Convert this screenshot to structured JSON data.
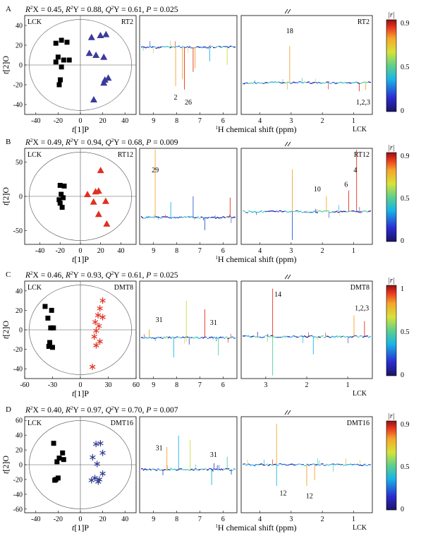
{
  "panels": [
    {
      "letter": "A",
      "stats": {
        "r2x": "0.45",
        "r2y": "0.88",
        "q2y": "0.61",
        "p": "0.025"
      },
      "score_plot": {
        "label_left": "LCK",
        "label_right": "RT2",
        "xticks": [
          -40,
          -20,
          0,
          20,
          40
        ],
        "yticks": [
          40,
          20,
          0,
          -20,
          -40
        ],
        "xlim": [
          -50,
          50
        ],
        "ylim": [
          -50,
          50
        ],
        "xlabel": "t[1]P",
        "ylabel": "t[2]O",
        "group_a": {
          "marker": "square",
          "color": "#000000",
          "points": [
            [
              -22,
              22
            ],
            [
              -17,
              25
            ],
            [
              -12,
              23
            ],
            [
              -20,
              8
            ],
            [
              -15,
              5
            ],
            [
              -10,
              5
            ],
            [
              -22,
              3
            ],
            [
              -17,
              -2
            ],
            [
              -18,
              -15
            ],
            [
              -19,
              -20
            ]
          ]
        },
        "group_b": {
          "marker": "triangle",
          "color": "#3a3a9e",
          "points": [
            [
              18,
              30
            ],
            [
              23,
              31
            ],
            [
              10,
              28
            ],
            [
              8,
              12
            ],
            [
              14,
              10
            ],
            [
              21,
              8
            ],
            [
              22,
              -15
            ],
            [
              25,
              -13
            ],
            [
              21,
              -18
            ],
            [
              12,
              -35
            ]
          ]
        }
      },
      "spectrum": {
        "left_ticks": [
          "9",
          "8",
          "7",
          "6"
        ],
        "right_ticks": [
          "4",
          "3",
          "2",
          "1"
        ],
        "xlabel_visible": true,
        "right_title": "RT2",
        "labels": [
          {
            "text": "2",
            "region": "L"
          },
          {
            "text": "26",
            "region": "L"
          },
          {
            "text": "18",
            "region": "R"
          },
          {
            "text": "1,2,3",
            "region": "R"
          }
        ],
        "lck_label": "LCK"
      },
      "colorbar": {
        "title": "|r|",
        "ticks": [
          "0.9",
          "0.5",
          "0"
        ]
      }
    },
    {
      "letter": "B",
      "stats": {
        "r2x": "0.49",
        "r2y": "0.94",
        "q2y": "0.68",
        "p": "0.009"
      },
      "score_plot": {
        "label_left": "LCK",
        "label_right": "RT12",
        "xticks": [
          -40,
          -20,
          0,
          20,
          40
        ],
        "yticks": [
          50,
          0,
          -50
        ],
        "xlim": [
          -55,
          55
        ],
        "ylim": [
          -70,
          70
        ],
        "xlabel": "t[1]P",
        "ylabel": "t[2]O",
        "group_a": {
          "marker": "square",
          "color": "#000000",
          "points": [
            [
              -20,
              16
            ],
            [
              -16,
              15
            ],
            [
              -19,
              3
            ],
            [
              -17,
              -2
            ],
            [
              -21,
              -5
            ],
            [
              -20,
              -10
            ],
            [
              -18,
              -16
            ]
          ]
        },
        "group_b": {
          "marker": "triangle",
          "color": "#e03020",
          "points": [
            [
              20,
              38
            ],
            [
              15,
              7
            ],
            [
              18,
              8
            ],
            [
              7,
              3
            ],
            [
              13,
              -8
            ],
            [
              25,
              -7
            ],
            [
              26,
              -40
            ],
            [
              18,
              -26
            ]
          ]
        }
      },
      "spectrum": {
        "left_ticks": [
          "9",
          "8",
          "7",
          "6"
        ],
        "right_ticks": [
          "4",
          "3",
          "2",
          "1"
        ],
        "xlabel_visible": true,
        "right_title": "RT12",
        "labels": [
          {
            "text": "29",
            "region": "L"
          },
          {
            "text": "10",
            "region": "R"
          },
          {
            "text": "6",
            "region": "R"
          },
          {
            "text": "4",
            "region": "R"
          }
        ],
        "lck_label": ""
      },
      "colorbar": {
        "title": "|r|",
        "ticks": [
          "0.9",
          "0.5",
          "0"
        ]
      }
    },
    {
      "letter": "C",
      "stats": {
        "r2x": "0.46",
        "r2y": "0.93",
        "q2y": "0.61",
        "p": "0.025"
      },
      "score_plot": {
        "label_left": "LCK",
        "label_right": "DMT8",
        "xticks": [
          -60,
          -30,
          0,
          30,
          60
        ],
        "yticks": [
          40,
          20,
          0,
          -20,
          -40
        ],
        "xlim": [
          -60,
          60
        ],
        "ylim": [
          -50,
          50
        ],
        "xlabel": "t[1]P",
        "ylabel": "t[2]O",
        "group_a": {
          "marker": "square",
          "color": "#000000",
          "points": [
            [
              -38,
              24
            ],
            [
              -31,
              20
            ],
            [
              -35,
              12
            ],
            [
              -29,
              2
            ],
            [
              -32,
              2
            ],
            [
              -33,
              -13
            ],
            [
              -30,
              -18
            ],
            [
              -34,
              -17
            ]
          ]
        },
        "group_b": {
          "marker": "asterisk",
          "color": "#e03020",
          "points": [
            [
              24,
              30
            ],
            [
              21,
              22
            ],
            [
              19,
              15
            ],
            [
              24,
              13
            ],
            [
              16,
              8
            ],
            [
              20,
              4
            ],
            [
              17,
              -1
            ],
            [
              15,
              -7
            ],
            [
              21,
              -12
            ],
            [
              17,
              -16
            ],
            [
              13,
              -38
            ]
          ]
        }
      },
      "spectrum": {
        "left_ticks": [
          "9",
          "8",
          "7",
          "6"
        ],
        "right_ticks": [
          "3",
          "2",
          "1"
        ],
        "xlabel_visible": false,
        "right_title": "DMT8",
        "labels": [
          {
            "text": "31",
            "region": "L"
          },
          {
            "text": "31",
            "region": "L"
          },
          {
            "text": "14",
            "region": "R"
          },
          {
            "text": "1,2,3",
            "region": "R"
          }
        ],
        "lck_label": "LCK"
      },
      "colorbar": {
        "title": "|r|",
        "ticks": [
          "1",
          "0.5",
          "0"
        ]
      }
    },
    {
      "letter": "D",
      "stats": {
        "r2x": "0.40",
        "r2y": "0.97",
        "q2y": "0.70",
        "p": "0.007"
      },
      "score_plot": {
        "label_left": "LCK",
        "label_right": "DMT16",
        "xticks": [
          -40,
          -20,
          0,
          20,
          40
        ],
        "yticks": [
          60,
          40,
          20,
          0,
          -20,
          -40,
          -60
        ],
        "xlim": [
          -50,
          50
        ],
        "ylim": [
          -65,
          65
        ],
        "xlabel": "t[1]P",
        "ylabel": "t[2]O",
        "group_a": {
          "marker": "square",
          "color": "#000000",
          "points": [
            [
              -24,
              29
            ],
            [
              -16,
              16
            ],
            [
              -19,
              9
            ],
            [
              -15,
              7
            ],
            [
              -21,
              4
            ],
            [
              -22,
              -20
            ],
            [
              -20,
              -18
            ],
            [
              -23,
              -21
            ]
          ]
        },
        "group_b": {
          "marker": "asterisk",
          "color": "#2e3b8e",
          "points": [
            [
              14,
              28
            ],
            [
              18,
              29
            ],
            [
              20,
              16
            ],
            [
              11,
              10
            ],
            [
              15,
              1
            ],
            [
              20,
              -12
            ],
            [
              13,
              -18
            ],
            [
              17,
              -20
            ],
            [
              10,
              -21
            ],
            [
              16,
              -23
            ]
          ]
        }
      },
      "spectrum": {
        "left_ticks": [
          "9",
          "8",
          "7",
          "6"
        ],
        "right_ticks": [
          "4",
          "3",
          "2",
          "1"
        ],
        "xlabel_visible": true,
        "right_title": "DMT16",
        "labels": [
          {
            "text": "31",
            "region": "L"
          },
          {
            "text": "31",
            "region": "L"
          },
          {
            "text": "12",
            "region": "R"
          },
          {
            "text": "12",
            "region": "R"
          }
        ],
        "lck_label": "LCK"
      },
      "colorbar": {
        "title": "|r|",
        "ticks": [
          "0.9",
          "0.5",
          "0"
        ]
      }
    }
  ],
  "spectrum_xlabel": "1H chemical shift (ppm)",
  "chart_data": [
    {
      "type": "scatter",
      "title": "LCK vs RT2",
      "xlabel": "t[1]P",
      "ylabel": "t[2]O",
      "xlim": [
        -50,
        50
      ],
      "ylim": [
        -50,
        50
      ],
      "series": [
        {
          "name": "LCK",
          "x": [
            -22,
            -17,
            -12,
            -20,
            -15,
            -10,
            -22,
            -17,
            -18,
            -19
          ],
          "y": [
            22,
            25,
            23,
            8,
            5,
            5,
            3,
            -2,
            -15,
            -20
          ]
        },
        {
          "name": "RT2",
          "x": [
            18,
            23,
            10,
            8,
            14,
            21,
            22,
            25,
            21,
            12
          ],
          "y": [
            30,
            31,
            28,
            12,
            10,
            8,
            -15,
            -13,
            -18,
            -35
          ]
        }
      ]
    },
    {
      "type": "scatter",
      "title": "LCK vs RT12",
      "xlabel": "t[1]P",
      "ylabel": "t[2]O",
      "xlim": [
        -55,
        55
      ],
      "ylim": [
        -70,
        70
      ],
      "series": [
        {
          "name": "LCK",
          "x": [
            -20,
            -16,
            -19,
            -17,
            -21,
            -20,
            -18
          ],
          "y": [
            16,
            15,
            3,
            -2,
            -5,
            -10,
            -16
          ]
        },
        {
          "name": "RT12",
          "x": [
            20,
            15,
            18,
            7,
            13,
            25,
            26,
            18
          ],
          "y": [
            38,
            7,
            8,
            3,
            -8,
            -7,
            -40,
            -26
          ]
        }
      ]
    },
    {
      "type": "scatter",
      "title": "LCK vs DMT8",
      "xlabel": "t[1]P",
      "ylabel": "t[2]O",
      "xlim": [
        -60,
        60
      ],
      "ylim": [
        -50,
        50
      ],
      "series": [
        {
          "name": "LCK",
          "x": [
            -38,
            -31,
            -35,
            -29,
            -32,
            -33,
            -30,
            -34
          ],
          "y": [
            24,
            20,
            12,
            2,
            2,
            -13,
            -18,
            -17
          ]
        },
        {
          "name": "DMT8",
          "x": [
            24,
            21,
            19,
            24,
            16,
            20,
            17,
            15,
            21,
            17,
            13
          ],
          "y": [
            30,
            22,
            15,
            13,
            8,
            4,
            -1,
            -7,
            -12,
            -16,
            -38
          ]
        }
      ]
    },
    {
      "type": "scatter",
      "title": "LCK vs DMT16",
      "xlabel": "t[1]P",
      "ylabel": "t[2]O",
      "xlim": [
        -50,
        50
      ],
      "ylim": [
        -65,
        65
      ],
      "series": [
        {
          "name": "LCK",
          "x": [
            -24,
            -16,
            -19,
            -15,
            -21,
            -22,
            -20,
            -23
          ],
          "y": [
            29,
            16,
            9,
            7,
            4,
            -20,
            -18,
            -21
          ]
        },
        {
          "name": "DMT16",
          "x": [
            14,
            18,
            20,
            11,
            15,
            20,
            13,
            17,
            10,
            16
          ],
          "y": [
            28,
            29,
            16,
            10,
            1,
            -12,
            -18,
            -20,
            -21,
            -23
          ]
        }
      ]
    }
  ]
}
